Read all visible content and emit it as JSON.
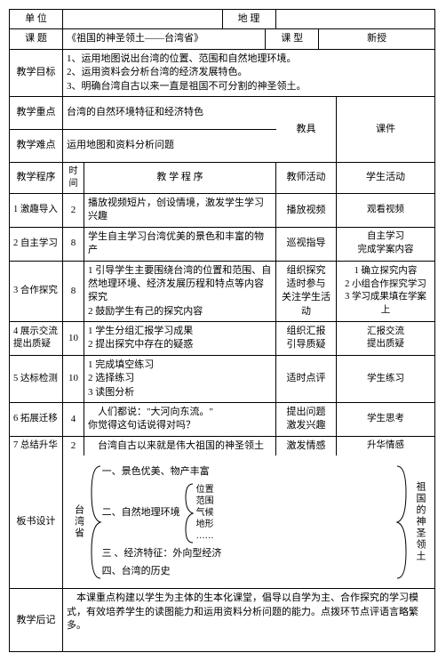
{
  "header": {
    "unit_label": "单 位",
    "unit_value": "",
    "subject_label": "地 理",
    "subject_value": "",
    "topic_label": "课 题",
    "topic_value": "《祖国的神圣领土——台湾省》",
    "type_label": "课 型",
    "type_value": "新授"
  },
  "goals": {
    "label": "教学目标",
    "g1": "1、运用地图说出台湾的位置、范围和自然地理环境。",
    "g2": "2、运用资料会分析台湾的经济发展特色。",
    "g3": "3、明确台湾自古以来一直是祖国不可分割的神圣领土。"
  },
  "focus": {
    "label": "教学重点",
    "value": "台湾的自然环境特征和经济特色"
  },
  "diff": {
    "label": "教学难点",
    "value": "运用地图和资料分析问题"
  },
  "tools": {
    "label": "教具",
    "value": "课件"
  },
  "proc_header": {
    "label": "教学程序",
    "time": "时间",
    "procedure": "教 学 程 序",
    "teacher": "教师活动",
    "student": "学生活动"
  },
  "steps": [
    {
      "no": "1 激趣导入",
      "time": "2",
      "proc": "播放视频短片，创设情境，激发学生学习兴趣",
      "teacher": "播放视频",
      "student": "观看视频"
    },
    {
      "no": "2 自主学习",
      "time": "8",
      "proc": "学生自主学习台湾优美的景色和丰富的物产",
      "teacher": "巡视指导",
      "student": "自主学习\n完成学案内容"
    },
    {
      "no": "3 合作探究",
      "time": "8",
      "proc": "1 引导学生主要围绕台湾的位置和范围、自然地理环境、经济发展历程和特点等内容探究\n2 鼓励学生有己的探究内容",
      "teacher": "组织探究\n适时参与\n关注学生活动",
      "student": "1 确立探究内容\n2 小组合作探究学习\n3 学习成果填在学案上"
    },
    {
      "no": "4 展示交流 提出质疑",
      "time": "10",
      "proc": "1 学生分组汇报学习成果\n2 提出探究中存在的疑惑",
      "teacher": "组织汇报\n引导质疑",
      "student": "汇报交流\n提出质疑"
    },
    {
      "no": "5 达标检测",
      "time": "10",
      "proc": "1 完成填空练习\n2 选择练习\n3 读图分析",
      "teacher": "适时点评",
      "student": "学生练习"
    },
    {
      "no": "6 拓展迁移",
      "time": "4",
      "proc": "    人们都说：\"大河向东流。\"\n你觉得这句话说得对吗？",
      "teacher": "提出问题\n激发兴趣",
      "student": "学生思考"
    },
    {
      "no": "7 总结升华",
      "time": "2",
      "proc": "    台湾自古以来就是伟大祖国的神圣领土",
      "teacher": "激发情感",
      "student": "升华情感"
    }
  ],
  "board": {
    "label": "板书设计",
    "region": "台湾省",
    "l1": "一、景色优美、物产丰富",
    "l2": "二、自然地理环境",
    "sub": [
      "位置",
      "范围",
      "气候",
      "地形",
      "……"
    ],
    "l3": "三 、经济特征：外向型经济",
    "l4": "四、台湾的历史",
    "right": "祖国的神圣领土"
  },
  "reflect": {
    "label": "教学后记",
    "value": "    本课重点构建以学生为主体的生本化课堂，倡导以自学为主、合作探究的学习模式，有效培养学生的读图能力和运用资料分析问题的能力。点拨环节点评语言略繁多。"
  }
}
